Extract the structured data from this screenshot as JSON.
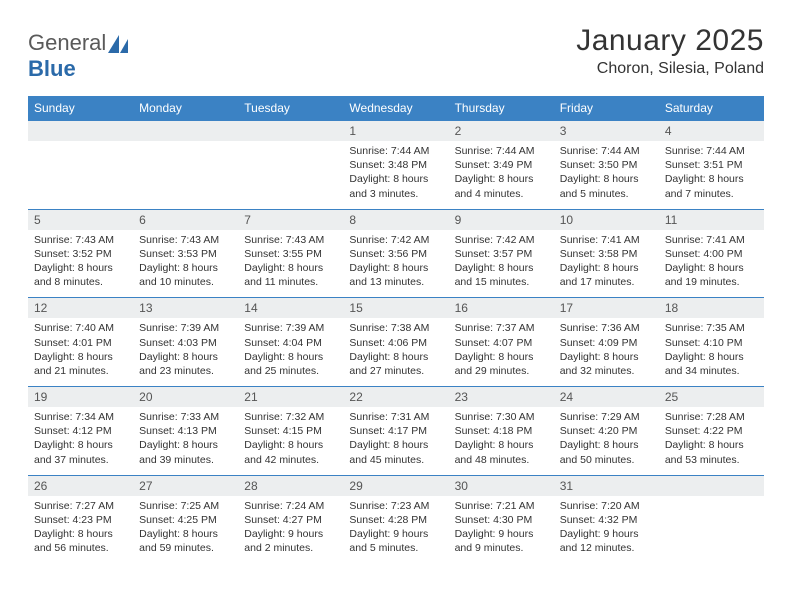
{
  "colors": {
    "header_bg": "#3b82c4",
    "header_text": "#ffffff",
    "daynum_bg": "#eceeef",
    "daynum_text": "#555555",
    "body_text": "#333333",
    "divider": "#3b82c4",
    "logo_gray": "#5a5a5a",
    "logo_blue": "#2b6aa9",
    "page_bg": "#ffffff"
  },
  "typography": {
    "title_fontsize": 30,
    "location_fontsize": 16,
    "header_fontsize": 12,
    "daynum_fontsize": 12,
    "body_fontsize": 10.5,
    "font_family": "Arial"
  },
  "logo": {
    "text_a": "General",
    "text_b": "Blue"
  },
  "title": "January 2025",
  "location": "Choron, Silesia, Poland",
  "day_names": [
    "Sunday",
    "Monday",
    "Tuesday",
    "Wednesday",
    "Thursday",
    "Friday",
    "Saturday"
  ],
  "weeks": [
    [
      {
        "blank": true
      },
      {
        "blank": true
      },
      {
        "blank": true
      },
      {
        "num": "1",
        "sunrise": "Sunrise: 7:44 AM",
        "sunset": "Sunset: 3:48 PM",
        "day1": "Daylight: 8 hours",
        "day2": "and 3 minutes."
      },
      {
        "num": "2",
        "sunrise": "Sunrise: 7:44 AM",
        "sunset": "Sunset: 3:49 PM",
        "day1": "Daylight: 8 hours",
        "day2": "and 4 minutes."
      },
      {
        "num": "3",
        "sunrise": "Sunrise: 7:44 AM",
        "sunset": "Sunset: 3:50 PM",
        "day1": "Daylight: 8 hours",
        "day2": "and 5 minutes."
      },
      {
        "num": "4",
        "sunrise": "Sunrise: 7:44 AM",
        "sunset": "Sunset: 3:51 PM",
        "day1": "Daylight: 8 hours",
        "day2": "and 7 minutes."
      }
    ],
    [
      {
        "num": "5",
        "sunrise": "Sunrise: 7:43 AM",
        "sunset": "Sunset: 3:52 PM",
        "day1": "Daylight: 8 hours",
        "day2": "and 8 minutes."
      },
      {
        "num": "6",
        "sunrise": "Sunrise: 7:43 AM",
        "sunset": "Sunset: 3:53 PM",
        "day1": "Daylight: 8 hours",
        "day2": "and 10 minutes."
      },
      {
        "num": "7",
        "sunrise": "Sunrise: 7:43 AM",
        "sunset": "Sunset: 3:55 PM",
        "day1": "Daylight: 8 hours",
        "day2": "and 11 minutes."
      },
      {
        "num": "8",
        "sunrise": "Sunrise: 7:42 AM",
        "sunset": "Sunset: 3:56 PM",
        "day1": "Daylight: 8 hours",
        "day2": "and 13 minutes."
      },
      {
        "num": "9",
        "sunrise": "Sunrise: 7:42 AM",
        "sunset": "Sunset: 3:57 PM",
        "day1": "Daylight: 8 hours",
        "day2": "and 15 minutes."
      },
      {
        "num": "10",
        "sunrise": "Sunrise: 7:41 AM",
        "sunset": "Sunset: 3:58 PM",
        "day1": "Daylight: 8 hours",
        "day2": "and 17 minutes."
      },
      {
        "num": "11",
        "sunrise": "Sunrise: 7:41 AM",
        "sunset": "Sunset: 4:00 PM",
        "day1": "Daylight: 8 hours",
        "day2": "and 19 minutes."
      }
    ],
    [
      {
        "num": "12",
        "sunrise": "Sunrise: 7:40 AM",
        "sunset": "Sunset: 4:01 PM",
        "day1": "Daylight: 8 hours",
        "day2": "and 21 minutes."
      },
      {
        "num": "13",
        "sunrise": "Sunrise: 7:39 AM",
        "sunset": "Sunset: 4:03 PM",
        "day1": "Daylight: 8 hours",
        "day2": "and 23 minutes."
      },
      {
        "num": "14",
        "sunrise": "Sunrise: 7:39 AM",
        "sunset": "Sunset: 4:04 PM",
        "day1": "Daylight: 8 hours",
        "day2": "and 25 minutes."
      },
      {
        "num": "15",
        "sunrise": "Sunrise: 7:38 AM",
        "sunset": "Sunset: 4:06 PM",
        "day1": "Daylight: 8 hours",
        "day2": "and 27 minutes."
      },
      {
        "num": "16",
        "sunrise": "Sunrise: 7:37 AM",
        "sunset": "Sunset: 4:07 PM",
        "day1": "Daylight: 8 hours",
        "day2": "and 29 minutes."
      },
      {
        "num": "17",
        "sunrise": "Sunrise: 7:36 AM",
        "sunset": "Sunset: 4:09 PM",
        "day1": "Daylight: 8 hours",
        "day2": "and 32 minutes."
      },
      {
        "num": "18",
        "sunrise": "Sunrise: 7:35 AM",
        "sunset": "Sunset: 4:10 PM",
        "day1": "Daylight: 8 hours",
        "day2": "and 34 minutes."
      }
    ],
    [
      {
        "num": "19",
        "sunrise": "Sunrise: 7:34 AM",
        "sunset": "Sunset: 4:12 PM",
        "day1": "Daylight: 8 hours",
        "day2": "and 37 minutes."
      },
      {
        "num": "20",
        "sunrise": "Sunrise: 7:33 AM",
        "sunset": "Sunset: 4:13 PM",
        "day1": "Daylight: 8 hours",
        "day2": "and 39 minutes."
      },
      {
        "num": "21",
        "sunrise": "Sunrise: 7:32 AM",
        "sunset": "Sunset: 4:15 PM",
        "day1": "Daylight: 8 hours",
        "day2": "and 42 minutes."
      },
      {
        "num": "22",
        "sunrise": "Sunrise: 7:31 AM",
        "sunset": "Sunset: 4:17 PM",
        "day1": "Daylight: 8 hours",
        "day2": "and 45 minutes."
      },
      {
        "num": "23",
        "sunrise": "Sunrise: 7:30 AM",
        "sunset": "Sunset: 4:18 PM",
        "day1": "Daylight: 8 hours",
        "day2": "and 48 minutes."
      },
      {
        "num": "24",
        "sunrise": "Sunrise: 7:29 AM",
        "sunset": "Sunset: 4:20 PM",
        "day1": "Daylight: 8 hours",
        "day2": "and 50 minutes."
      },
      {
        "num": "25",
        "sunrise": "Sunrise: 7:28 AM",
        "sunset": "Sunset: 4:22 PM",
        "day1": "Daylight: 8 hours",
        "day2": "and 53 minutes."
      }
    ],
    [
      {
        "num": "26",
        "sunrise": "Sunrise: 7:27 AM",
        "sunset": "Sunset: 4:23 PM",
        "day1": "Daylight: 8 hours",
        "day2": "and 56 minutes."
      },
      {
        "num": "27",
        "sunrise": "Sunrise: 7:25 AM",
        "sunset": "Sunset: 4:25 PM",
        "day1": "Daylight: 8 hours",
        "day2": "and 59 minutes."
      },
      {
        "num": "28",
        "sunrise": "Sunrise: 7:24 AM",
        "sunset": "Sunset: 4:27 PM",
        "day1": "Daylight: 9 hours",
        "day2": "and 2 minutes."
      },
      {
        "num": "29",
        "sunrise": "Sunrise: 7:23 AM",
        "sunset": "Sunset: 4:28 PM",
        "day1": "Daylight: 9 hours",
        "day2": "and 5 minutes."
      },
      {
        "num": "30",
        "sunrise": "Sunrise: 7:21 AM",
        "sunset": "Sunset: 4:30 PM",
        "day1": "Daylight: 9 hours",
        "day2": "and 9 minutes."
      },
      {
        "num": "31",
        "sunrise": "Sunrise: 7:20 AM",
        "sunset": "Sunset: 4:32 PM",
        "day1": "Daylight: 9 hours",
        "day2": "and 12 minutes."
      },
      {
        "blank": true
      }
    ]
  ]
}
